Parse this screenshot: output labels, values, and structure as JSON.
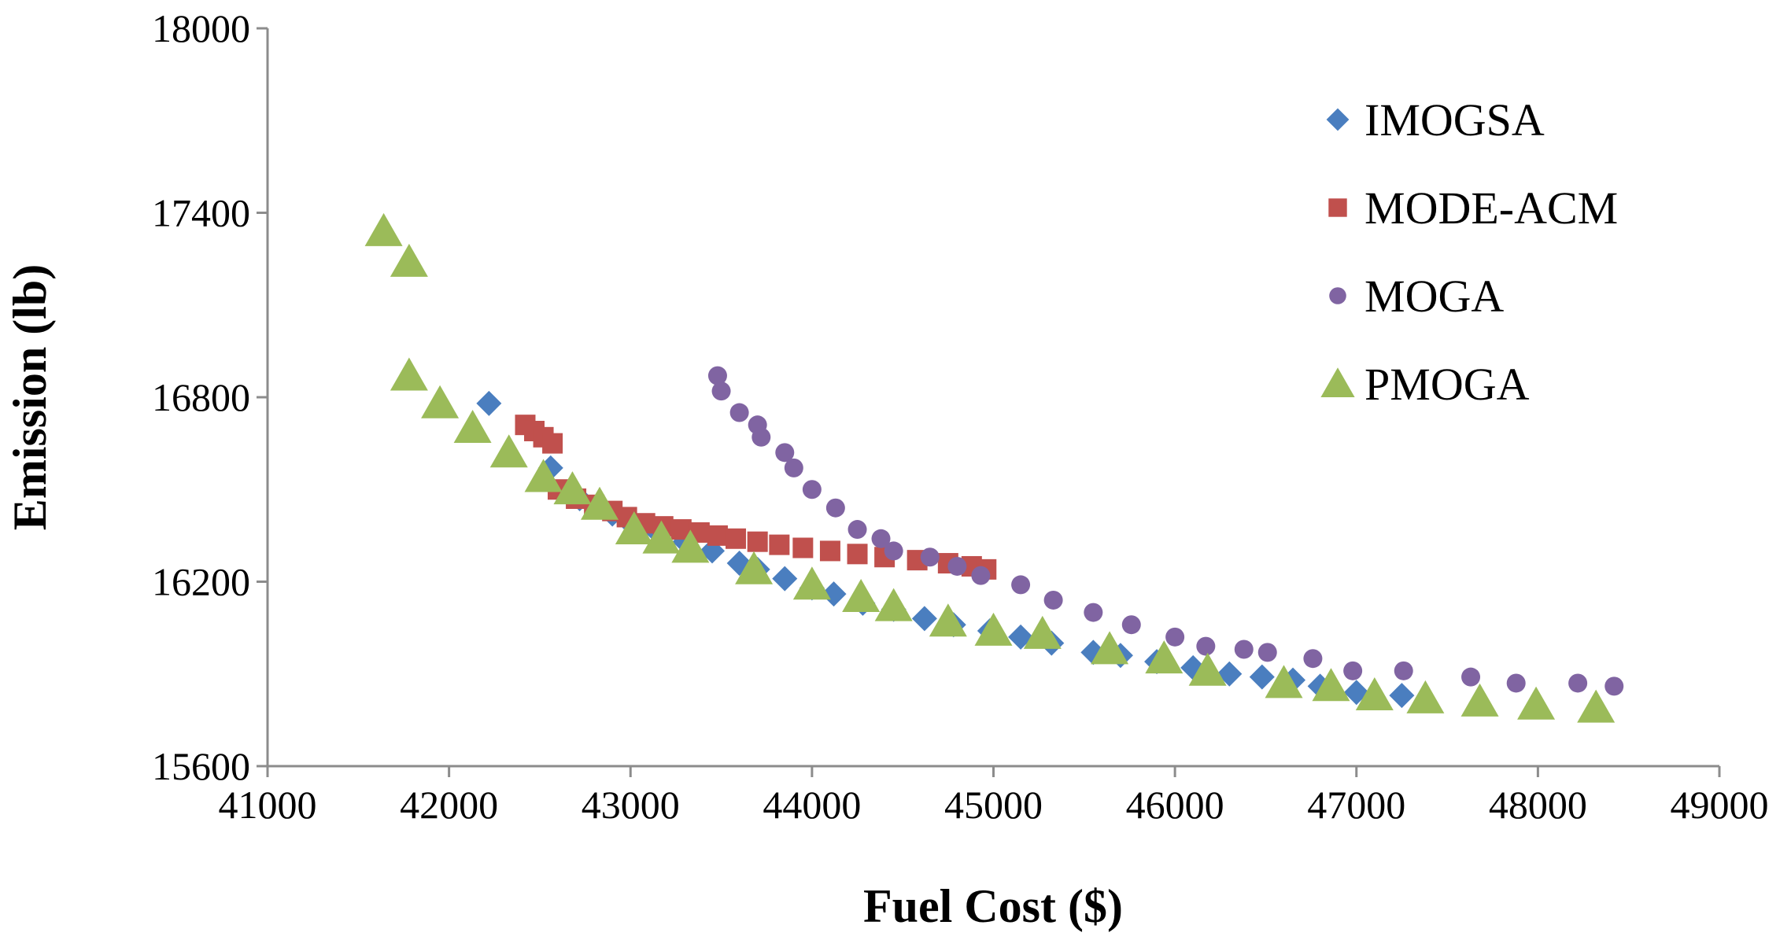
{
  "chart_data": {
    "type": "scatter",
    "title": "",
    "xlabel": "Fuel Cost ($)",
    "ylabel": "Emission (lb)",
    "xlim": [
      41000,
      49000
    ],
    "ylim": [
      15600,
      18000
    ],
    "xticks": [
      41000,
      42000,
      43000,
      44000,
      45000,
      46000,
      47000,
      48000,
      49000
    ],
    "yticks": [
      15600,
      16200,
      16800,
      17400,
      18000
    ],
    "xtick_labels": [
      "41000",
      "42000",
      "43000",
      "44000",
      "45000",
      "46000",
      "47000",
      "48000",
      "49000"
    ],
    "ytick_labels": [
      "15600",
      "16200",
      "16800",
      "17400",
      "18000"
    ],
    "grid": false,
    "legend_position": "top-right",
    "series": [
      {
        "name": "IMOGSA",
        "marker": "diamond",
        "color": "#4a7ebf",
        "points": [
          [
            42220,
            16780
          ],
          [
            42560,
            16570
          ],
          [
            42720,
            16470
          ],
          [
            42900,
            16420
          ],
          [
            43000,
            16390
          ],
          [
            43150,
            16360
          ],
          [
            43300,
            16330
          ],
          [
            43450,
            16300
          ],
          [
            43600,
            16260
          ],
          [
            43700,
            16240
          ],
          [
            43850,
            16210
          ],
          [
            44000,
            16180
          ],
          [
            44120,
            16160
          ],
          [
            44280,
            16130
          ],
          [
            44450,
            16110
          ],
          [
            44620,
            16080
          ],
          [
            44780,
            16060
          ],
          [
            44980,
            16040
          ],
          [
            45150,
            16020
          ],
          [
            45320,
            16000
          ],
          [
            45550,
            15970
          ],
          [
            45700,
            15960
          ],
          [
            45900,
            15940
          ],
          [
            46100,
            15920
          ],
          [
            46300,
            15900
          ],
          [
            46480,
            15890
          ],
          [
            46650,
            15880
          ],
          [
            46800,
            15860
          ],
          [
            47000,
            15840
          ],
          [
            47250,
            15830
          ]
        ]
      },
      {
        "name": "MODE-ACM",
        "marker": "square",
        "color": "#c0504d",
        "points": [
          [
            42420,
            16710
          ],
          [
            42470,
            16690
          ],
          [
            42520,
            16670
          ],
          [
            42570,
            16650
          ],
          [
            42600,
            16500
          ],
          [
            42700,
            16470
          ],
          [
            42800,
            16450
          ],
          [
            42900,
            16430
          ],
          [
            42980,
            16410
          ],
          [
            43080,
            16390
          ],
          [
            43180,
            16380
          ],
          [
            43280,
            16370
          ],
          [
            43380,
            16360
          ],
          [
            43480,
            16350
          ],
          [
            43580,
            16340
          ],
          [
            43700,
            16330
          ],
          [
            43820,
            16320
          ],
          [
            43950,
            16310
          ],
          [
            44100,
            16300
          ],
          [
            44250,
            16290
          ],
          [
            44400,
            16280
          ],
          [
            44580,
            16270
          ],
          [
            44750,
            16260
          ],
          [
            44880,
            16250
          ],
          [
            44960,
            16240
          ]
        ]
      },
      {
        "name": "MOGA",
        "marker": "circle",
        "color": "#8064a2",
        "points": [
          [
            43480,
            16870
          ],
          [
            43500,
            16820
          ],
          [
            43600,
            16750
          ],
          [
            43700,
            16710
          ],
          [
            43720,
            16670
          ],
          [
            43850,
            16620
          ],
          [
            43900,
            16570
          ],
          [
            44000,
            16500
          ],
          [
            44130,
            16440
          ],
          [
            44250,
            16370
          ],
          [
            44380,
            16340
          ],
          [
            44450,
            16300
          ],
          [
            44650,
            16280
          ],
          [
            44800,
            16250
          ],
          [
            44930,
            16220
          ],
          [
            45150,
            16190
          ],
          [
            45330,
            16140
          ],
          [
            45550,
            16100
          ],
          [
            45760,
            16060
          ],
          [
            46000,
            16020
          ],
          [
            46170,
            15990
          ],
          [
            46380,
            15980
          ],
          [
            46510,
            15970
          ],
          [
            46760,
            15950
          ],
          [
            46980,
            15910
          ],
          [
            47260,
            15910
          ],
          [
            47630,
            15890
          ],
          [
            47880,
            15870
          ],
          [
            48220,
            15870
          ],
          [
            48420,
            15860
          ]
        ]
      },
      {
        "name": "PMOGA",
        "marker": "triangle",
        "color": "#9bbb59",
        "points": [
          [
            41640,
            17340
          ],
          [
            41780,
            17240
          ],
          [
            41780,
            16870
          ],
          [
            41950,
            16780
          ],
          [
            42130,
            16700
          ],
          [
            42330,
            16620
          ],
          [
            42520,
            16540
          ],
          [
            42680,
            16500
          ],
          [
            42830,
            16450
          ],
          [
            43020,
            16370
          ],
          [
            43170,
            16340
          ],
          [
            43330,
            16310
          ],
          [
            43680,
            16240
          ],
          [
            44000,
            16190
          ],
          [
            44270,
            16150
          ],
          [
            44450,
            16120
          ],
          [
            44750,
            16070
          ],
          [
            45000,
            16040
          ],
          [
            45270,
            16030
          ],
          [
            45640,
            15980
          ],
          [
            45940,
            15950
          ],
          [
            46180,
            15910
          ],
          [
            46600,
            15870
          ],
          [
            46860,
            15860
          ],
          [
            47100,
            15830
          ],
          [
            47380,
            15820
          ],
          [
            47680,
            15810
          ],
          [
            47990,
            15800
          ],
          [
            48320,
            15790
          ]
        ]
      }
    ]
  }
}
